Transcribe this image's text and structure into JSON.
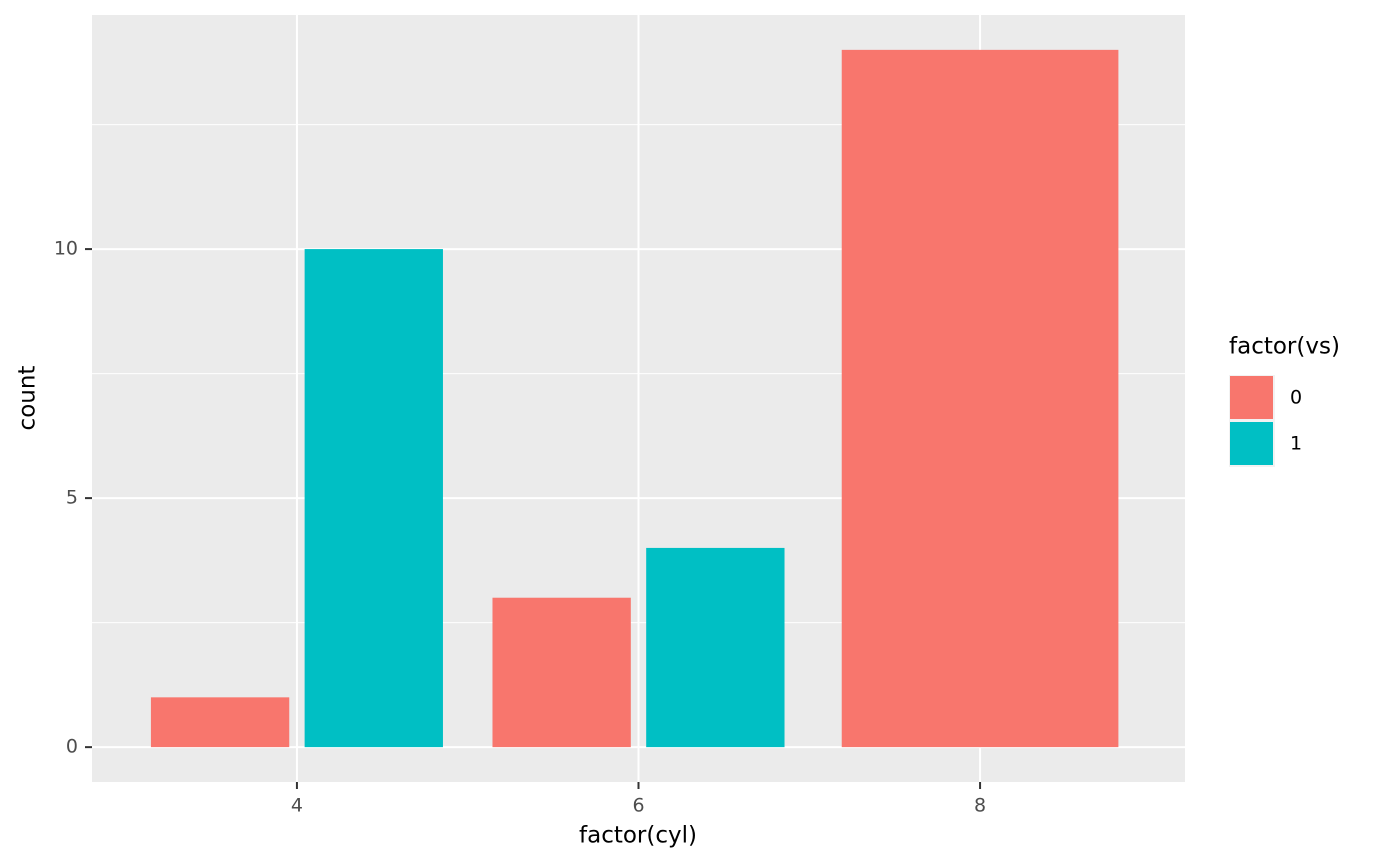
{
  "chart_data": {
    "type": "bar",
    "x_label": "factor(cyl)",
    "y_label": "count",
    "legend_title": "factor(vs)",
    "categories": [
      "4",
      "6",
      "8"
    ],
    "series": [
      {
        "name": "0",
        "color": "#F8766D",
        "values": [
          1,
          3,
          14
        ]
      },
      {
        "name": "1",
        "color": "#00BFC4",
        "values": [
          10,
          4,
          null
        ]
      }
    ],
    "ylim": [
      -0.7,
      14.7
    ],
    "yticks": [
      0,
      5,
      10
    ],
    "grid": true,
    "legend": "right"
  }
}
